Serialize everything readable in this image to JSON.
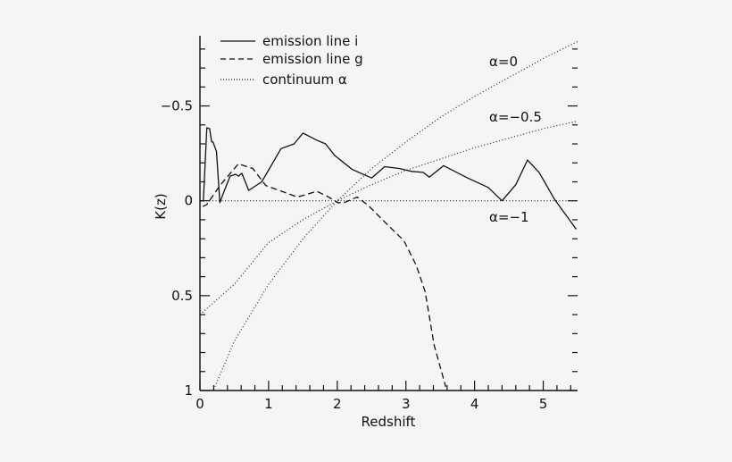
{
  "chart_data": {
    "type": "line",
    "xlabel": "Redshift",
    "ylabel": "K(z)",
    "xlim": [
      0,
      5.5
    ],
    "ylim": [
      1,
      -0.87
    ],
    "y_inverted": true,
    "grid": false,
    "legend_placement": "top-left",
    "xticks": [
      0,
      1,
      2,
      3,
      4,
      5
    ],
    "xtick_labels": [
      "0",
      "1",
      "2",
      "3",
      "4",
      "5"
    ],
    "yticks": [
      -0.5,
      0,
      0.5,
      1
    ],
    "ytick_labels": [
      "−0.5",
      "0",
      "0.5",
      "1"
    ],
    "series": [
      {
        "name": "emission line i",
        "style": "solid",
        "x": [
          0,
          0.05,
          0.1,
          0.14,
          0.17,
          0.19,
          0.24,
          0.29,
          0.33,
          0.44,
          0.52,
          0.56,
          0.61,
          0.71,
          0.9,
          1.18,
          1.37,
          1.5,
          1.7,
          1.83,
          1.96,
          2.22,
          2.5,
          2.69,
          2.91,
          3.08,
          3.25,
          3.34,
          3.55,
          3.9,
          4.2,
          4.4,
          4.6,
          4.77,
          4.94,
          5.16,
          5.3,
          5.48
        ],
        "y": [
          0,
          0,
          -0.385,
          -0.38,
          -0.31,
          -0.31,
          -0.26,
          0.01,
          -0.03,
          -0.13,
          -0.14,
          -0.13,
          -0.145,
          -0.055,
          -0.1,
          -0.275,
          -0.3,
          -0.357,
          -0.32,
          -0.3,
          -0.24,
          -0.165,
          -0.12,
          -0.18,
          -0.17,
          -0.155,
          -0.15,
          -0.125,
          -0.185,
          -0.12,
          -0.07,
          0,
          -0.085,
          -0.215,
          -0.15,
          -0.01,
          0.06,
          0.15
        ]
      },
      {
        "name": "emission line g",
        "style": "dashed",
        "x": [
          0.04,
          0.1,
          0.29,
          0.56,
          0.77,
          0.96,
          1.42,
          1.7,
          1.85,
          2.01,
          2.1,
          2.29,
          2.45,
          2.71,
          2.97,
          3.15,
          3.28,
          3.41,
          3.58
        ],
        "y": [
          0.03,
          0.02,
          -0.08,
          -0.195,
          -0.17,
          -0.08,
          -0.02,
          -0.05,
          -0.025,
          0.01,
          0.01,
          -0.02,
          0.024,
          0.118,
          0.21,
          0.34,
          0.48,
          0.76,
          0.98
        ]
      },
      {
        "name": "continuum α",
        "style": "dotted",
        "curves": [
          {
            "label": "α=0",
            "x": [
              0.2,
              0.5,
              1,
              1.5,
              2,
              2.5,
              3,
              3.5,
              4,
              4.5,
              5,
              5.5
            ],
            "y": [
              0.995,
              0.74,
              0.44,
              0.2,
              0,
              -0.17,
              -0.31,
              -0.44,
              -0.55,
              -0.65,
              -0.75,
              -0.84
            ]
          },
          {
            "label": "α=−0.5",
            "x": [
              0,
              0.5,
              1,
              1.5,
              2,
              2.5,
              3,
              3.5,
              4,
              4.5,
              5,
              5.5
            ],
            "y": [
              0.6,
              0.44,
              0.22,
              0.1,
              0,
              -0.085,
              -0.16,
              -0.22,
              -0.28,
              -0.33,
              -0.38,
              -0.42
            ]
          },
          {
            "label": "α=−1",
            "x": [
              0,
              5.5
            ],
            "y": [
              0,
              0
            ]
          }
        ]
      }
    ]
  }
}
